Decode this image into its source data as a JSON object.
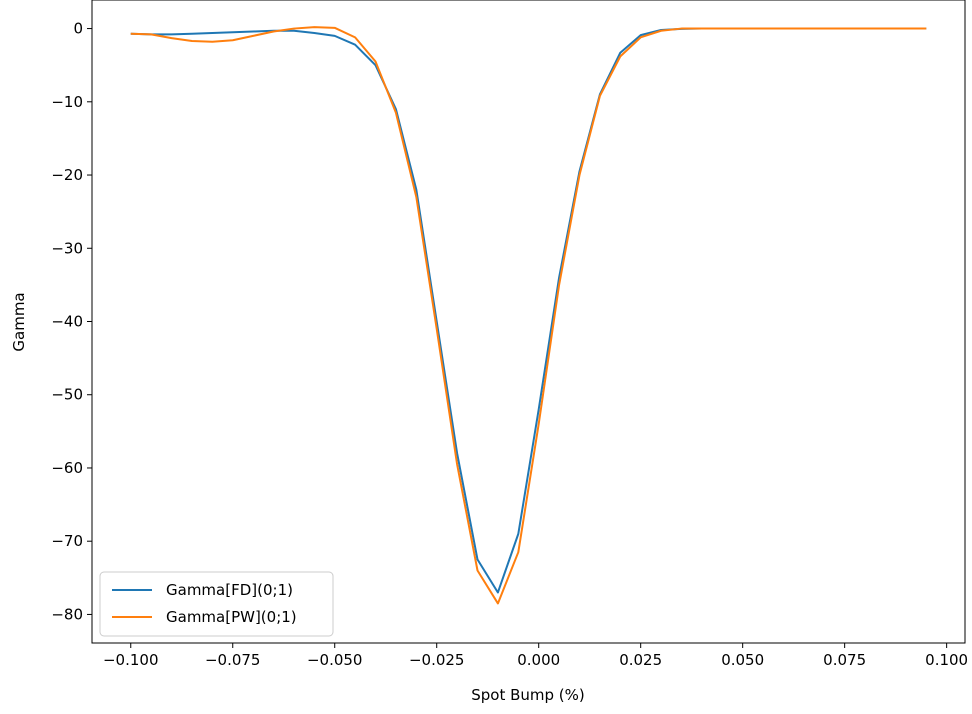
{
  "chart_data": {
    "type": "line",
    "title": "",
    "xlabel": "Spot Bump (%)",
    "ylabel": "Gamma",
    "xlim": [
      -0.1095,
      0.1045
    ],
    "ylim": [
      -83.9,
      3.9
    ],
    "xticks": [
      -0.1,
      -0.075,
      -0.05,
      -0.025,
      0.0,
      0.025,
      0.05,
      0.075,
      0.1
    ],
    "xtick_labels": [
      "−0.100",
      "−0.075",
      "−0.050",
      "−0.025",
      "0.000",
      "0.025",
      "0.050",
      "0.075",
      "0.100"
    ],
    "yticks": [
      0,
      -10,
      -20,
      -30,
      -40,
      -50,
      -60,
      -70,
      -80
    ],
    "ytick_labels": [
      "0",
      "−10",
      "−20",
      "−30",
      "−40",
      "−50",
      "−60",
      "−70",
      "−80"
    ],
    "grid": false,
    "legend_position": "lower-left",
    "x": [
      -0.1,
      -0.095,
      -0.09,
      -0.085,
      -0.08,
      -0.075,
      -0.07,
      -0.065,
      -0.06,
      -0.055,
      -0.05,
      -0.045,
      -0.04,
      -0.035,
      -0.03,
      -0.025,
      -0.02,
      -0.015,
      -0.01,
      -0.005,
      0.0,
      0.005,
      0.01,
      0.015,
      0.02,
      0.025,
      0.03,
      0.035,
      0.04,
      0.045,
      0.05,
      0.055,
      0.06,
      0.065,
      0.07,
      0.075,
      0.08,
      0.085,
      0.09,
      0.095
    ],
    "series": [
      {
        "name": "Gamma[FD](0;1)",
        "color": "#1f77b4",
        "values": [
          -0.7,
          -0.8,
          -0.8,
          -0.7,
          -0.6,
          -0.5,
          -0.4,
          -0.3,
          -0.3,
          -0.6,
          -1.0,
          -2.2,
          -5.0,
          -11.0,
          -22.0,
          -40.0,
          -58.0,
          -72.5,
          -77.0,
          -69.0,
          -52.0,
          -34.0,
          -19.5,
          -9.0,
          -3.3,
          -0.9,
          -0.2,
          -0.05,
          0.0,
          0.0,
          0.0,
          0.0,
          0.0,
          0.0,
          0.0,
          0.0,
          0.0,
          0.0,
          0.0,
          0.0
        ]
      },
      {
        "name": "Gamma[PW](0;1)",
        "color": "#ff7f0e",
        "values": [
          -0.7,
          -0.8,
          -1.3,
          -1.7,
          -1.8,
          -1.6,
          -1.0,
          -0.4,
          0.0,
          0.2,
          0.1,
          -1.2,
          -4.5,
          -11.5,
          -23.0,
          -41.0,
          -59.5,
          -74.0,
          -78.5,
          -71.5,
          -54.0,
          -35.0,
          -20.0,
          -9.2,
          -3.8,
          -1.2,
          -0.3,
          0.0,
          0.0,
          0.0,
          0.0,
          0.0,
          0.0,
          0.0,
          0.0,
          0.0,
          0.0,
          0.0,
          0.0,
          0.0
        ]
      }
    ]
  }
}
